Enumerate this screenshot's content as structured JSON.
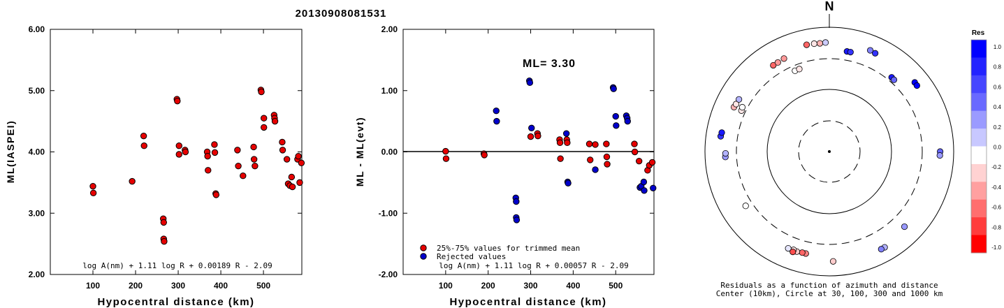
{
  "title": "20130908081531",
  "chart_data": [
    {
      "type": "scatter",
      "panel": "left",
      "xlabel": "Hypocentral distance (km)",
      "ylabel": "ML(IASPEI)",
      "xlim": [
        0,
        590
      ],
      "ylim": [
        2.0,
        6.0
      ],
      "xticks": [
        "100",
        "200",
        "300",
        "400",
        "500"
      ],
      "yticks": [
        "2.00",
        "3.00",
        "4.00",
        "5.00",
        "6.00"
      ],
      "formula": "log A(nm) + 1.11 log R + 0.00189 R - 2.09",
      "color": "#e60000",
      "points": [
        [
          100,
          3.44
        ],
        [
          101,
          3.33
        ],
        [
          192,
          3.52
        ],
        [
          219,
          4.26
        ],
        [
          220,
          4.1
        ],
        [
          265,
          2.91
        ],
        [
          266,
          2.85
        ],
        [
          266,
          2.58
        ],
        [
          267,
          2.54
        ],
        [
          297,
          4.86
        ],
        [
          298,
          4.83
        ],
        [
          302,
          4.1
        ],
        [
          302,
          3.96
        ],
        [
          316,
          4.03
        ],
        [
          317,
          4.0
        ],
        [
          368,
          4.0
        ],
        [
          369,
          3.93
        ],
        [
          370,
          3.7
        ],
        [
          385,
          4.12
        ],
        [
          386,
          3.99
        ],
        [
          388,
          3.32
        ],
        [
          389,
          3.3
        ],
        [
          439,
          4.03
        ],
        [
          441,
          3.77
        ],
        [
          452,
          3.61
        ],
        [
          477,
          4.08
        ],
        [
          478,
          3.88
        ],
        [
          480,
          3.77
        ],
        [
          494,
          5.01
        ],
        [
          495,
          4.98
        ],
        [
          501,
          4.55
        ],
        [
          501,
          4.4
        ],
        [
          525,
          4.6
        ],
        [
          526,
          4.55
        ],
        [
          527,
          4.5
        ],
        [
          544,
          4.16
        ],
        [
          545,
          4.03
        ],
        [
          555,
          3.88
        ],
        [
          558,
          3.48
        ],
        [
          562,
          3.45
        ],
        [
          566,
          3.59
        ],
        [
          568,
          3.43
        ],
        [
          580,
          3.88
        ],
        [
          582,
          3.93
        ],
        [
          585,
          3.5
        ],
        [
          589,
          3.82
        ]
      ]
    },
    {
      "type": "scatter",
      "panel": "middle",
      "xlabel": "Hypocentral distance (km)",
      "ylabel": "ML - ML(evt)",
      "xlim": [
        0,
        590
      ],
      "ylim": [
        -2.0,
        2.0
      ],
      "xticks": [
        "100",
        "200",
        "300",
        "400",
        "500"
      ],
      "yticks": [
        "-2.00",
        "-1.00",
        "0.00",
        "1.00",
        "2.00"
      ],
      "annotation": "ML= 3.30",
      "formula": "log A(nm) + 1.11 log R + 0.00057 R - 2.09",
      "legend": [
        "25%-75% values for trimmed mean",
        "Rejected values"
      ],
      "legend_colors": [
        "#e60000",
        "#0000cc"
      ],
      "series": [
        {
          "name": "25%-75% values for trimmed mean",
          "color": "#e60000",
          "points": [
            [
              100,
              0.01
            ],
            [
              101,
              -0.11
            ],
            [
              190,
              -0.03
            ],
            [
              191,
              -0.05
            ],
            [
              300,
              0.25
            ],
            [
              316,
              0.3
            ],
            [
              317,
              0.26
            ],
            [
              368,
              0.2
            ],
            [
              369,
              0.15
            ],
            [
              370,
              -0.11
            ],
            [
              385,
              0.2
            ],
            [
              386,
              0.15
            ],
            [
              438,
              0.13
            ],
            [
              440,
              -0.13
            ],
            [
              452,
              0.12
            ],
            [
              478,
              0.13
            ],
            [
              479,
              -0.08
            ],
            [
              480,
              -0.2
            ],
            [
              544,
              0.13
            ],
            [
              545,
              0.0
            ],
            [
              555,
              -0.15
            ],
            [
              575,
              -0.3
            ],
            [
              579,
              -0.22
            ],
            [
              586,
              -0.17
            ]
          ]
        },
        {
          "name": "Rejected values",
          "color": "#0000cc",
          "points": [
            [
              219,
              0.67
            ],
            [
              220,
              0.5
            ],
            [
              265,
              -0.75
            ],
            [
              266,
              -0.81
            ],
            [
              266,
              -1.07
            ],
            [
              267,
              -1.11
            ],
            [
              297,
              1.16
            ],
            [
              298,
              1.13
            ],
            [
              302,
              0.39
            ],
            [
              384,
              0.3
            ],
            [
              387,
              -0.49
            ],
            [
              388,
              -0.51
            ],
            [
              452,
              -0.29
            ],
            [
              494,
              1.05
            ],
            [
              495,
              1.03
            ],
            [
              500,
              0.58
            ],
            [
              501,
              0.43
            ],
            [
              525,
              0.59
            ],
            [
              527,
              0.55
            ],
            [
              528,
              0.5
            ],
            [
              557,
              -0.58
            ],
            [
              560,
              -0.56
            ],
            [
              566,
              -0.49
            ],
            [
              567,
              -0.63
            ],
            [
              588,
              -0.59
            ]
          ]
        }
      ]
    },
    {
      "type": "polar-scatter",
      "panel": "right",
      "north_label": "N",
      "caption": [
        "Residuals as a function of azimuth and distance",
        "Center (10km), Circle at 30, 100, 300 and 1000 km"
      ],
      "circles_km": [
        30,
        100,
        300,
        1000
      ],
      "colorbar": {
        "title": "Res",
        "labels": [
          "1.0",
          "0.8",
          "0.6",
          "0.4",
          "0.2",
          "0.0",
          "-0.2",
          "-0.4",
          "-0.6",
          "-0.8",
          "-1.0"
        ],
        "colors": [
          "#0000ff",
          "#2323ff",
          "#4646ff",
          "#6969ff",
          "#9b9bff",
          "#c8c8ff",
          "#ffffff",
          "#ffd2d2",
          "#ffa0a0",
          "#ff6e6e",
          "#ff3c3c",
          "#ff0000"
        ]
      },
      "points": [
        {
          "az": 348,
          "dist": 560,
          "res": -0.6
        },
        {
          "az": 352,
          "dist": 555,
          "res": -0.1
        },
        {
          "az": 355,
          "dist": 548,
          "res": -0.3
        },
        {
          "az": 358,
          "dist": 558,
          "res": 0.2
        },
        {
          "az": 22,
          "dist": 560,
          "res": 0.5
        },
        {
          "az": 25,
          "dist": 545,
          "res": 0.8
        },
        {
          "az": 10,
          "dist": 420,
          "res": 0.9
        },
        {
          "az": 12,
          "dist": 420,
          "res": 0.8
        },
        {
          "az": 40,
          "dist": 350,
          "res": 0.9
        },
        {
          "az": 42,
          "dist": 345,
          "res": 0.6
        },
        {
          "az": 51,
          "dist": 575,
          "res": 1.0
        },
        {
          "az": 53,
          "dist": 570,
          "res": 1.0
        },
        {
          "az": 327,
          "dist": 440,
          "res": -0.6
        },
        {
          "az": 330,
          "dist": 440,
          "res": -0.4
        },
        {
          "az": 334,
          "dist": 450,
          "res": -0.4
        },
        {
          "az": 295,
          "dist": 480,
          "res": -0.3
        },
        {
          "az": 297,
          "dist": 470,
          "res": -0.1
        },
        {
          "az": 300,
          "dist": 465,
          "res": 0.3
        },
        {
          "az": 278,
          "dist": 570,
          "res": 0.8
        },
        {
          "az": 280,
          "dist": 560,
          "res": 0.9
        },
        {
          "az": 267,
          "dist": 460,
          "res": 0.4
        },
        {
          "az": 269,
          "dist": 455,
          "res": 0.3
        },
        {
          "az": 295,
          "dist": 350,
          "res": -0.1
        },
        {
          "az": 297,
          "dist": 360,
          "res": 0.0
        },
        {
          "az": 337,
          "dist": 250,
          "res": 0.0
        },
        {
          "az": 340,
          "dist": 250,
          "res": -0.1
        },
        {
          "az": 90,
          "dist": 595,
          "res": 0.6
        },
        {
          "az": 92,
          "dist": 590,
          "res": 0.4
        },
        {
          "az": 135,
          "dist": 500,
          "res": 0.4
        },
        {
          "az": 150,
          "dist": 590,
          "res": 0.3
        },
        {
          "az": 152,
          "dist": 590,
          "res": 0.5
        },
        {
          "az": 193,
          "dist": 470,
          "res": -0.5
        },
        {
          "az": 195,
          "dist": 470,
          "res": -0.6
        },
        {
          "az": 198,
          "dist": 480,
          "res": -0.2
        },
        {
          "az": 200,
          "dist": 470,
          "res": -0.1
        },
        {
          "az": 203,
          "dist": 480,
          "res": 0.1
        },
        {
          "az": 200,
          "dist": 510,
          "res": -0.7
        },
        {
          "az": 178,
          "dist": 575,
          "res": -0.2
        },
        {
          "az": 237,
          "dist": 390,
          "res": 0.0
        }
      ]
    }
  ]
}
